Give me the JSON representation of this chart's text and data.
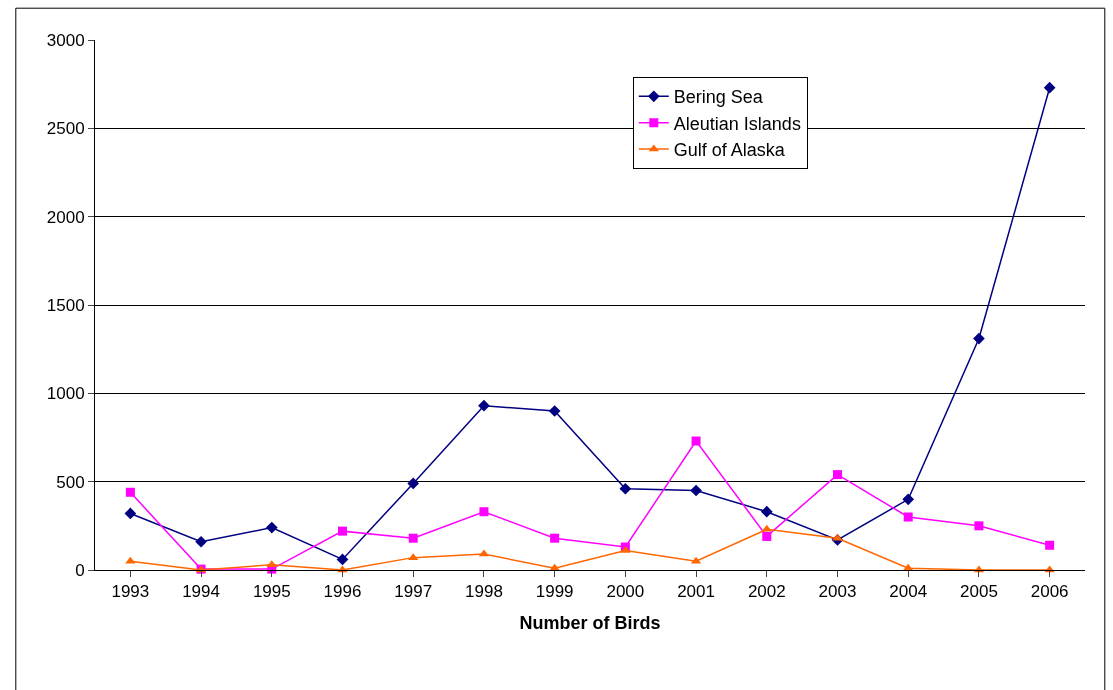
{
  "chart_data": {
    "type": "line",
    "xlabel": "Number of Birds",
    "categories": [
      "1993",
      "1994",
      "1995",
      "1996",
      "1997",
      "1998",
      "1999",
      "2000",
      "2001",
      "2002",
      "2003",
      "2004",
      "2005",
      "2006"
    ],
    "series": [
      {
        "name": "Bering Sea",
        "color": "#000080",
        "marker": "diamond",
        "values": [
          320,
          160,
          240,
          60,
          490,
          930,
          900,
          460,
          450,
          330,
          170,
          400,
          1310,
          2730
        ]
      },
      {
        "name": "Aleutian Islands",
        "color": "#ff00ff",
        "marker": "square",
        "values": [
          440,
          5,
          5,
          220,
          180,
          330,
          180,
          130,
          730,
          190,
          540,
          300,
          250,
          140
        ]
      },
      {
        "name": "Gulf of Alaska",
        "color": "#ff6600",
        "marker": "triangle",
        "values": [
          50,
          0,
          30,
          0,
          70,
          90,
          10,
          110,
          50,
          230,
          180,
          10,
          0,
          0
        ]
      }
    ],
    "ylim": [
      0,
      3000
    ],
    "yticks": [
      0,
      500,
      1000,
      1500,
      2000,
      2500,
      3000
    ],
    "grid": "y",
    "legend": "top right",
    "line_style": "solid"
  }
}
